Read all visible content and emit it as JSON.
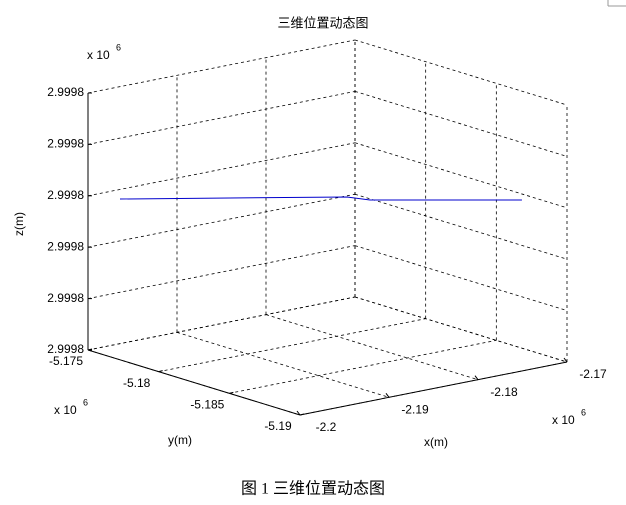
{
  "chart_data": {
    "type": "line3d",
    "title": "三维位置动态图",
    "xlabel": "x(m)",
    "ylabel": "y(m)",
    "zlabel": "z(m)",
    "x_multiplier": {
      "base": "x 10",
      "power": "6"
    },
    "y_multiplier": {
      "base": "x 10",
      "power": "6"
    },
    "z_multiplier": {
      "base": "x 10",
      "power": "6"
    },
    "xlim": [
      -2200000,
      -2170000
    ],
    "xticks": [
      {
        "value": -2200000,
        "label": "-2.2"
      },
      {
        "value": -2190000,
        "label": "-2.19"
      },
      {
        "value": -2180000,
        "label": "-2.18"
      },
      {
        "value": -2170000,
        "label": "-2.17"
      }
    ],
    "ylim": [
      -5175000,
      -5190000
    ],
    "yticks": [
      {
        "value": -5175000,
        "label": "-5.175"
      },
      {
        "value": -5180000,
        "label": "-5.18"
      },
      {
        "value": -5185000,
        "label": "-5.185"
      },
      {
        "value": -5190000,
        "label": "-5.19"
      }
    ],
    "zlim": [
      2999800,
      2999805
    ],
    "zticks": [
      {
        "value": 2999800,
        "label": "2.9998"
      },
      {
        "value": 2999801,
        "label": "2.9998"
      },
      {
        "value": 2999802,
        "label": "2.9998"
      },
      {
        "value": 2999803,
        "label": "2.9998"
      },
      {
        "value": 2999804,
        "label": "2.9998"
      },
      {
        "value": 2999805,
        "label": "2.9998"
      }
    ],
    "grid": true,
    "series": [
      {
        "color": "#0000cc",
        "x": [
          -2198530,
          -2182600,
          -2181700,
          -2171350
        ],
        "y": [
          -5176338,
          -5182365,
          -5183430,
          -5187660
        ],
        "z": [
          2999803,
          2999803,
          2999803,
          2999803
        ]
      }
    ]
  },
  "caption": "图 1  三维位置动态图"
}
